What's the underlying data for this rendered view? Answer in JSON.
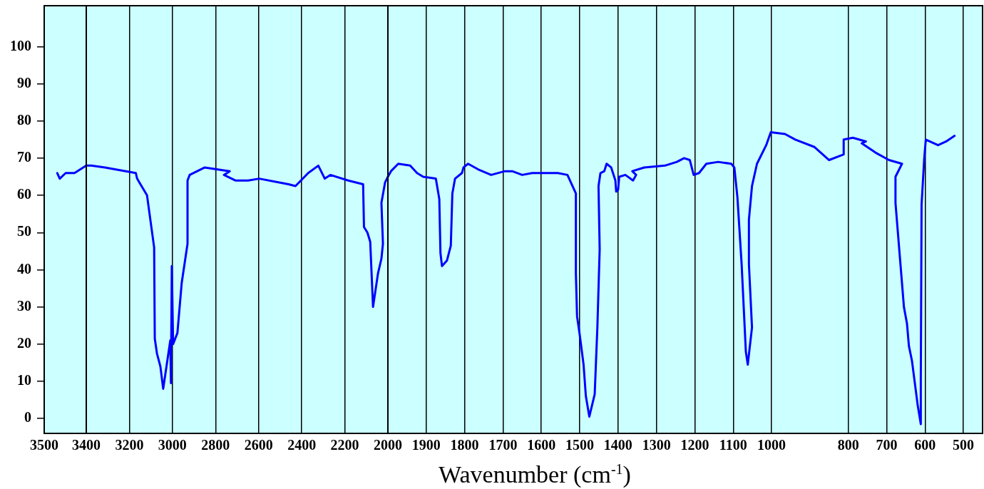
{
  "chart_data": [
    {
      "type": "line",
      "xlim": [
        3500,
        3400
      ],
      "xticks": [
        3500,
        3400
      ],
      "ylim": [
        -4,
        111
      ],
      "yticks": [
        0,
        10,
        20,
        30,
        40,
        50,
        60,
        70,
        80,
        90,
        100
      ],
      "legend": false,
      "marker": "none",
      "line_style": "solid",
      "series": [
        {
          "color": "#0000ff",
          "x": [
            3469,
            3463,
            3449,
            3428,
            3400
          ],
          "values": [
            66,
            64.5,
            66,
            66,
            68
          ]
        }
      ]
    },
    {
      "type": "line",
      "xlim": [
        3400,
        2000
      ],
      "xticks": [
        3200,
        3000,
        2800,
        2600,
        2400,
        2200,
        2000
      ],
      "ylim": [
        -4,
        111
      ],
      "tick_labels": "x",
      "grid": "x",
      "legend": false,
      "marker": "none",
      "line_style": "solid",
      "series": [
        {
          "color": "#0000ff",
          "x": [
            3400,
            3377,
            3313,
            3170,
            3164,
            3118,
            3085,
            3082,
            3072,
            3056,
            3043,
            3010,
            3007,
            3003,
            2997,
            2977,
            2957,
            2930,
            2930,
            2920,
            2850,
            2734,
            2761,
            2708,
            2649,
            2597,
            2461,
            2429,
            2370,
            2323,
            2293,
            2267,
            2184,
            2115,
            2111,
            2095,
            2082,
            2069,
            2046,
            2030,
            2023,
            2030,
            2013,
            2000
          ],
          "values": [
            68,
            68,
            67.5,
            66,
            64.5,
            60,
            46,
            21.5,
            17.5,
            14,
            8,
            21,
            9.5,
            41,
            20,
            23,
            36.5,
            47,
            64,
            65.5,
            67.5,
            66.5,
            65.5,
            64,
            64,
            64.5,
            63,
            62.5,
            66,
            68,
            64.5,
            65.5,
            64,
            63,
            51.5,
            50,
            47.5,
            30,
            39,
            43,
            47,
            58,
            63.5,
            65
          ]
        }
      ]
    },
    {
      "type": "line",
      "xlabel": "Wavenumber (cm$^{-1}$)",
      "xlim": [
        2000,
        450
      ],
      "xticks": [
        1900,
        1800,
        1700,
        1600,
        1500,
        1400,
        1300,
        1200,
        1100,
        1000,
        800,
        700,
        600,
        500
      ],
      "ylim": [
        -4,
        111
      ],
      "tick_labels": "x",
      "grid": "x",
      "legend": false,
      "marker": "none",
      "line_style": "solid",
      "series": [
        {
          "color": "#0000ff",
          "x": [
            2000,
            1992,
            1973,
            1942,
            1924,
            1908,
            1875,
            1866,
            1863,
            1859,
            1846,
            1836,
            1832,
            1825,
            1807,
            1803,
            1791,
            1765,
            1731,
            1695,
            1676,
            1650,
            1624,
            1611,
            1600,
            1557,
            1532,
            1510,
            1510,
            1507,
            1500,
            1490,
            1484,
            1475,
            1461,
            1454,
            1448,
            1451,
            1446,
            1436,
            1430,
            1418,
            1407,
            1405,
            1400,
            1397,
            1381,
            1361,
            1353,
            1363,
            1332,
            1278,
            1247,
            1228,
            1213,
            1203,
            1189,
            1170,
            1139,
            1105,
            1097,
            1089,
            1078,
            1067,
            1062,
            1051,
            1059,
            1059,
            1051,
            1038,
            1014,
            1002,
            965,
            938,
            888,
            850,
            812,
            812,
            788,
            754,
            765,
            729,
            694,
            660,
            677,
            677,
            666,
            655,
            647,
            642,
            634,
            619,
            611,
            611,
            609,
            602,
            598,
            566,
            545,
            523
          ],
          "values": [
            65,
            66.5,
            68.5,
            68,
            66,
            65,
            64.5,
            59,
            44.5,
            41,
            42.5,
            46.5,
            60.5,
            64.5,
            66,
            67.5,
            68.5,
            67,
            65.5,
            66.5,
            66.5,
            65.5,
            66,
            66,
            66,
            66,
            65.5,
            60.5,
            39,
            27.5,
            22.5,
            14.5,
            6,
            0.5,
            6.5,
            24.5,
            45.5,
            62.5,
            66,
            66.5,
            68.5,
            67.5,
            64,
            61,
            61.5,
            65,
            65.5,
            64,
            65.5,
            66.5,
            67.5,
            68,
            69,
            70,
            69.5,
            65.5,
            66,
            68.5,
            69,
            68.5,
            67.5,
            59.5,
            41.5,
            18,
            14.5,
            24.5,
            41.5,
            53.5,
            62.5,
            68.5,
            73.5,
            77,
            76.5,
            75,
            73,
            69.5,
            71,
            75,
            75.5,
            74.5,
            74,
            71.5,
            69.5,
            68.5,
            65,
            58,
            44,
            30,
            25.5,
            19.5,
            15.5,
            3.5,
            -1.5,
            10.5,
            57.5,
            70,
            75,
            73.5,
            74.5,
            76
          ]
        }
      ]
    }
  ]
}
